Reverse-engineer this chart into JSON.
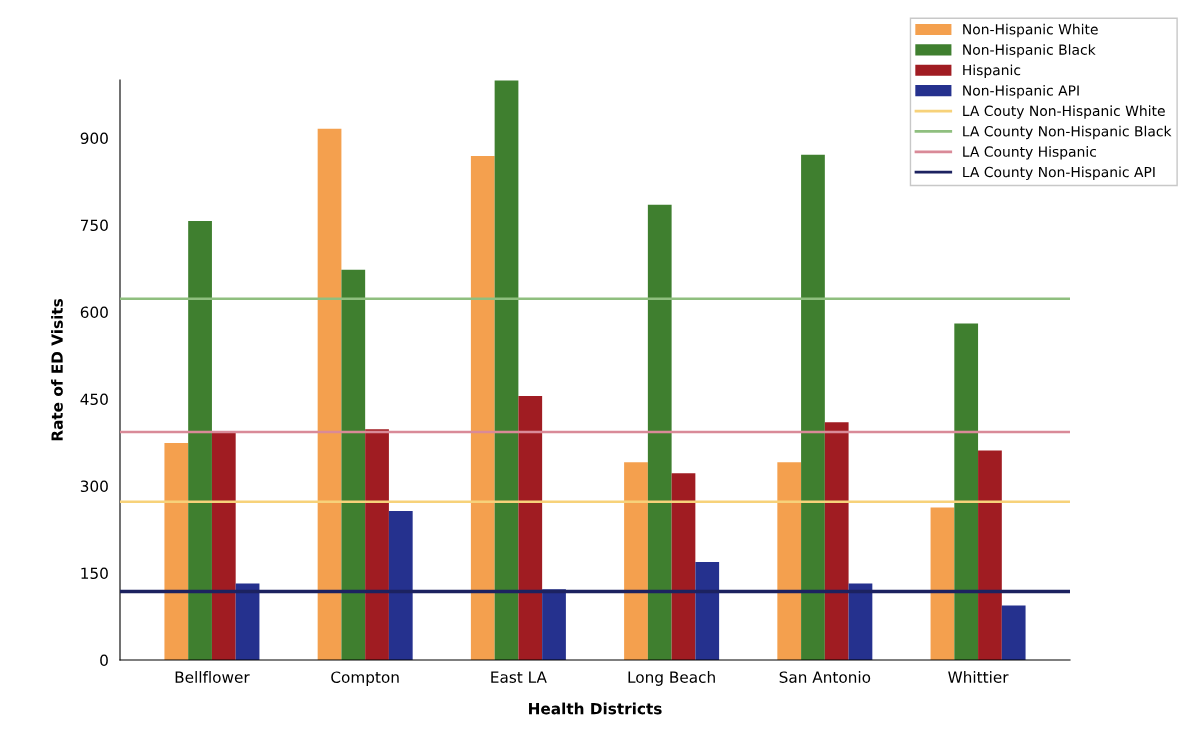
{
  "chart_data": {
    "type": "bar",
    "xlabel": "Health Districts",
    "ylabel": "Rate of ED Visits",
    "categories": [
      "Bellflower",
      "Compton",
      "East LA",
      "Long Beach",
      "San Antonio",
      "Whittier"
    ],
    "series": [
      {
        "name": "Non-Hispanic White",
        "color": "#f4a04e",
        "values": [
          374,
          916,
          869,
          341,
          341,
          263
        ]
      },
      {
        "name": "Non-Hispanic Black",
        "color": "#3f7f2f",
        "values": [
          757,
          673,
          999,
          785,
          871,
          580
        ]
      },
      {
        "name": "Hispanic",
        "color": "#a01c22",
        "values": [
          393,
          398,
          455,
          322,
          410,
          361
        ]
      },
      {
        "name": "Non-Hispanic API",
        "color": "#25318e",
        "values": [
          132,
          257,
          122,
          169,
          132,
          94
        ]
      }
    ],
    "ref_lines": [
      {
        "axis": "y",
        "value": 273,
        "label": "LA Couty Non-Hispanic White",
        "color": "#f7d27a"
      },
      {
        "axis": "y",
        "value": 623,
        "label": "LA County Non-Hispanic Black",
        "color": "#8fbf7f"
      },
      {
        "axis": "y",
        "value": 393,
        "label": "LA County Hispanic",
        "color": "#d98a98"
      },
      {
        "axis": "y",
        "value": 118,
        "label": "LA County Non-Hispanic API",
        "color": "#1c2260"
      }
    ],
    "ylim": [
      0,
      1000
    ],
    "yticks": [
      0,
      150,
      300,
      450,
      600,
      750,
      900
    ],
    "grid": false,
    "legend": "top right"
  }
}
